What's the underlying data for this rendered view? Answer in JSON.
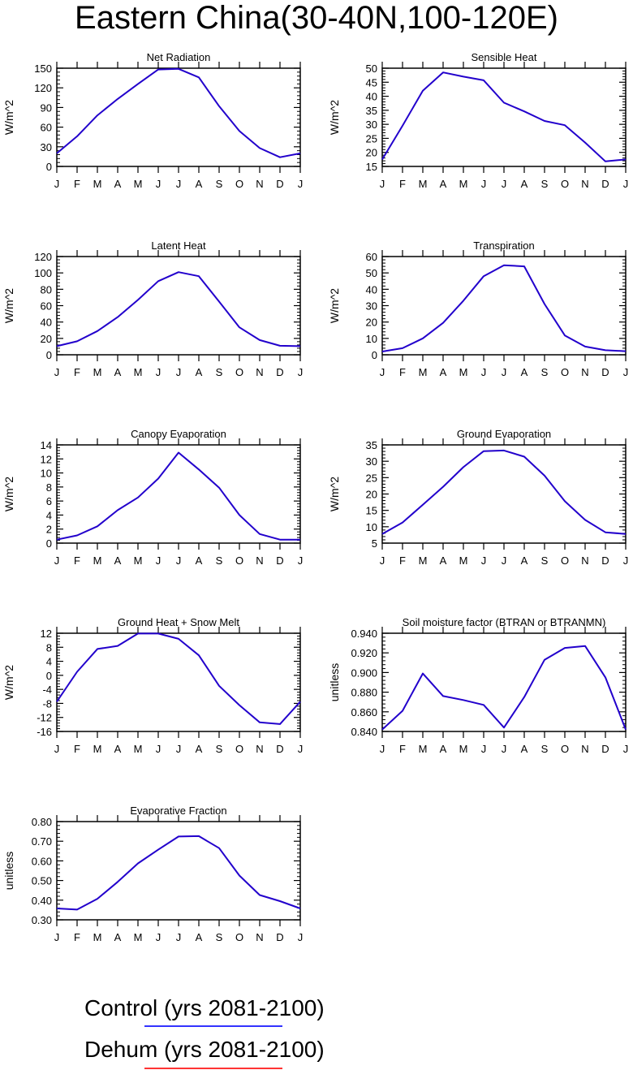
{
  "title": "Eastern China(30-40N,100-120E)",
  "legend": {
    "items": [
      {
        "label": "Control (yrs 2081-2100)",
        "color": "#3333ff"
      },
      {
        "label": "Dehum (yrs 2081-2100)",
        "color": "#ff3333"
      }
    ]
  },
  "colors": {
    "line": "#2200cc",
    "axis": "#000000"
  },
  "chart_data": [
    {
      "type": "line",
      "title": "Net Radiation",
      "ylabel": "W/m^2",
      "categories": [
        "J",
        "F",
        "M",
        "A",
        "M",
        "J",
        "J",
        "A",
        "S",
        "O",
        "N",
        "D",
        "J"
      ],
      "ylim": [
        0,
        150
      ],
      "yticks": [
        0,
        30,
        60,
        90,
        120,
        150
      ],
      "ytick_labels": [
        "0",
        "30",
        "60",
        "90",
        "120",
        "150"
      ],
      "series": [
        {
          "values": [
            20,
            46,
            78,
            103,
            126,
            148,
            149,
            136,
            92,
            54,
            28,
            14,
            20
          ]
        }
      ]
    },
    {
      "type": "line",
      "title": "Sensible Heat",
      "ylabel": "W/m^2",
      "categories": [
        "J",
        "F",
        "M",
        "A",
        "M",
        "J",
        "J",
        "A",
        "S",
        "O",
        "N",
        "D",
        "J"
      ],
      "ylim": [
        15,
        50
      ],
      "yticks": [
        15,
        20,
        25,
        30,
        35,
        40,
        45,
        50
      ],
      "ytick_labels": [
        "15",
        "20",
        "25",
        "30",
        "35",
        "40",
        "45",
        "50"
      ],
      "series": [
        {
          "values": [
            17.5,
            29.5,
            42,
            48.5,
            47,
            45.7,
            37.7,
            34.6,
            31.2,
            29.7,
            23.5,
            16.8,
            17.5
          ]
        }
      ]
    },
    {
      "type": "line",
      "title": "Latent Heat",
      "ylabel": "W/m^2",
      "categories": [
        "J",
        "F",
        "M",
        "A",
        "M",
        "J",
        "J",
        "A",
        "S",
        "O",
        "N",
        "D",
        "J"
      ],
      "ylim": [
        0,
        120
      ],
      "yticks": [
        0,
        20,
        40,
        60,
        80,
        100,
        120
      ],
      "ytick_labels": [
        "0",
        "20",
        "40",
        "60",
        "80",
        "100",
        "120"
      ],
      "series": [
        {
          "values": [
            10.5,
            16.5,
            29,
            46,
            67,
            90,
            101,
            96,
            65,
            33.5,
            18,
            11,
            10.5
          ]
        }
      ]
    },
    {
      "type": "line",
      "title": "Transpiration",
      "ylabel": "W/m^2",
      "categories": [
        "J",
        "F",
        "M",
        "A",
        "M",
        "J",
        "J",
        "A",
        "S",
        "O",
        "N",
        "D",
        "J"
      ],
      "ylim": [
        0,
        60
      ],
      "yticks": [
        0,
        10,
        20,
        30,
        40,
        50,
        60
      ],
      "ytick_labels": [
        "0",
        "10",
        "20",
        "30",
        "40",
        "50",
        "60"
      ],
      "series": [
        {
          "values": [
            2,
            4,
            10,
            19.5,
            33,
            48,
            54.7,
            54,
            31,
            11.8,
            5,
            2.8,
            2.2
          ]
        }
      ]
    },
    {
      "type": "line",
      "title": "Canopy Evaporation",
      "ylabel": "W/m^2",
      "categories": [
        "J",
        "F",
        "M",
        "A",
        "M",
        "J",
        "J",
        "A",
        "S",
        "O",
        "N",
        "D",
        "J"
      ],
      "ylim": [
        0,
        14
      ],
      "yticks": [
        0,
        2,
        4,
        6,
        8,
        10,
        12,
        14
      ],
      "ytick_labels": [
        "0",
        "2",
        "4",
        "6",
        "8",
        "10",
        "12",
        "14"
      ],
      "series": [
        {
          "values": [
            0.5,
            1.1,
            2.4,
            4.7,
            6.5,
            9.2,
            12.9,
            10.5,
            7.9,
            4.0,
            1.3,
            0.5,
            0.5
          ]
        }
      ]
    },
    {
      "type": "line",
      "title": "Ground Evaporation",
      "ylabel": "W/m^2",
      "categories": [
        "J",
        "F",
        "M",
        "A",
        "M",
        "J",
        "J",
        "A",
        "S",
        "O",
        "N",
        "D",
        "J"
      ],
      "ylim": [
        5,
        35
      ],
      "yticks": [
        5,
        10,
        15,
        20,
        25,
        30,
        35
      ],
      "ytick_labels": [
        "5",
        "10",
        "15",
        "20",
        "25",
        "30",
        "35"
      ],
      "series": [
        {
          "values": [
            7.8,
            11.3,
            16.7,
            22.2,
            28.2,
            33.1,
            33.3,
            31.4,
            25.6,
            17.8,
            12.1,
            8.3,
            7.8
          ]
        }
      ]
    },
    {
      "type": "line",
      "title": "Ground Heat + Snow Melt",
      "ylabel": "W/m^2",
      "categories": [
        "J",
        "F",
        "M",
        "A",
        "M",
        "J",
        "J",
        "A",
        "S",
        "O",
        "N",
        "D",
        "J"
      ],
      "ylim": [
        -16,
        12
      ],
      "yticks": [
        -16,
        -12,
        -8,
        -4,
        0,
        4,
        8,
        12
      ],
      "ytick_labels": [
        "-16",
        "-12",
        "-8",
        "-4",
        "0",
        "4",
        "8",
        "12"
      ],
      "series": [
        {
          "values": [
            -7.5,
            1,
            7.5,
            8.4,
            11.9,
            11.9,
            10.4,
            5.7,
            -3.0,
            -8.5,
            -13.4,
            -13.9,
            -7.5
          ]
        }
      ]
    },
    {
      "type": "line",
      "title": "Soil moisture factor (BTRAN or BTRANMN)",
      "ylabel": "unitless",
      "categories": [
        "J",
        "F",
        "M",
        "A",
        "M",
        "J",
        "J",
        "A",
        "S",
        "O",
        "N",
        "D",
        "J"
      ],
      "ylim": [
        0.84,
        0.94
      ],
      "yticks": [
        0.84,
        0.86,
        0.88,
        0.9,
        0.92,
        0.94
      ],
      "ytick_labels": [
        "0.840",
        "0.860",
        "0.880",
        "0.900",
        "0.920",
        "0.940"
      ],
      "series": [
        {
          "values": [
            0.842,
            0.861,
            0.899,
            0.876,
            0.872,
            0.867,
            0.844,
            0.875,
            0.913,
            0.925,
            0.927,
            0.895,
            0.842
          ]
        }
      ]
    },
    {
      "type": "line",
      "title": "Evaporative Fraction",
      "ylabel": "unitless",
      "categories": [
        "J",
        "F",
        "M",
        "A",
        "M",
        "J",
        "J",
        "A",
        "S",
        "O",
        "N",
        "D",
        "J"
      ],
      "ylim": [
        0.3,
        0.8
      ],
      "yticks": [
        0.3,
        0.4,
        0.5,
        0.6,
        0.7,
        0.8
      ],
      "ytick_labels": [
        "0.30",
        "0.40",
        "0.50",
        "0.60",
        "0.70",
        "0.80"
      ],
      "series": [
        {
          "values": [
            0.358,
            0.352,
            0.407,
            0.493,
            0.587,
            0.657,
            0.724,
            0.726,
            0.665,
            0.525,
            0.426,
            0.395,
            0.358
          ]
        }
      ]
    }
  ]
}
